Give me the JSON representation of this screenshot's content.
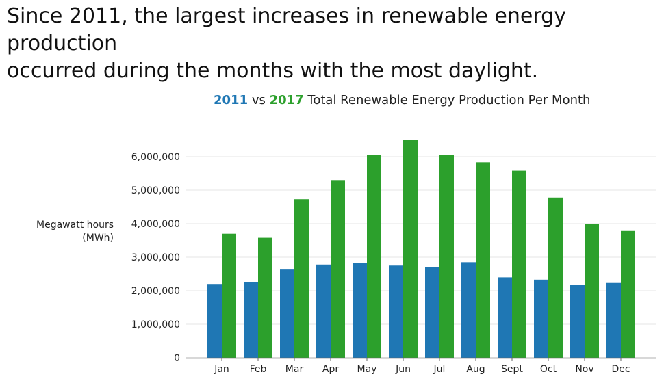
{
  "headline": {
    "line1": "Since 2011, the largest increases in renewable energy production",
    "line2": "occurred during the months with the most daylight."
  },
  "chart_data": {
    "type": "bar",
    "title_parts": {
      "series1": "2011",
      "connector": " vs ",
      "series2": "2017",
      "rest": " Total Renewable Energy Production Per Month"
    },
    "ylabel_lines": [
      "Megawatt hours",
      "(MWh)"
    ],
    "categories": [
      "Jan",
      "Feb",
      "Mar",
      "Apr",
      "May",
      "Jun",
      "Jul",
      "Aug",
      "Sept",
      "Oct",
      "Nov",
      "Dec"
    ],
    "series": [
      {
        "name": "2011",
        "color": "#1f77b4",
        "values": [
          2200000,
          2250000,
          2630000,
          2780000,
          2820000,
          2750000,
          2700000,
          2850000,
          2400000,
          2330000,
          2170000,
          2230000
        ]
      },
      {
        "name": "2017",
        "color": "#2ca02c",
        "values": [
          3700000,
          3580000,
          4730000,
          5300000,
          6050000,
          6500000,
          6050000,
          5830000,
          5580000,
          4780000,
          4000000,
          3780000
        ]
      }
    ],
    "yticks": [
      0,
      1000000,
      2000000,
      3000000,
      4000000,
      5000000,
      6000000
    ],
    "ytick_labels": [
      "0",
      "1,000,000",
      "2,000,000",
      "3,000,000",
      "4,000,000",
      "5,000,000",
      "6,000,000"
    ],
    "ylim": [
      0,
      6500000
    ],
    "grid": "horizontal",
    "gridline_color": "#e6e6e6",
    "axis_color": "#666666"
  }
}
